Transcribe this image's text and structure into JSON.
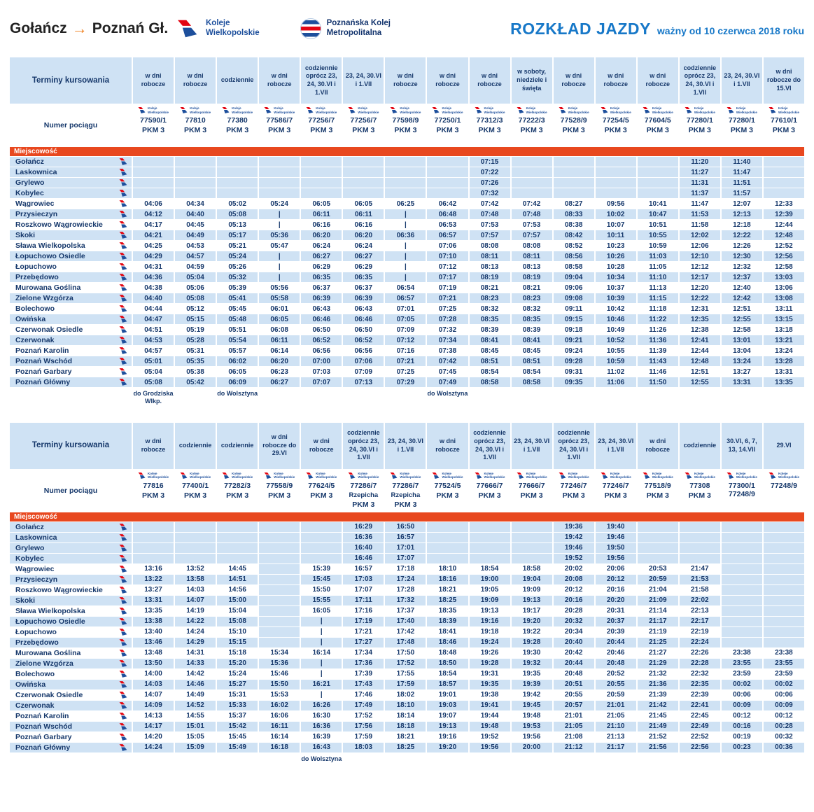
{
  "header": {
    "route_from": "Gołańcz",
    "route_to": "Poznań Gł.",
    "kw_logo_line1": "Koleje",
    "kw_logo_line2": "Wielkopolskie",
    "pkm_logo_line1": "Poznańska Kolej",
    "pkm_logo_line2": "Metropolitalna",
    "title": "ROZKŁAD JAZDY",
    "subtitle": "ważny od 10 czerwca 2018 roku"
  },
  "labels": {
    "terminy": "Terminy kursowania",
    "numer_pociagu": "Numer pociągu",
    "miejscowosc": "Miejscowość",
    "kw_small_line1": "Koleje",
    "kw_small_line2": "Wielkopolskie"
  },
  "colors": {
    "accent_blue": "#1778c8",
    "navy": "#16386b",
    "light_blue": "#cfe2f4",
    "red_bar": "#e8481f",
    "logo_red": "#e30613",
    "logo_blue": "#1d4f9c",
    "arrow_orange": "#ef7d1a"
  },
  "stations": [
    "Gołańcz",
    "Laskownica",
    "Grylewo",
    "Kobylec",
    "Wągrowiec",
    "Przysieczyn",
    "Roszkowo Wągrowieckie",
    "Skoki",
    "Sława Wielkopolska",
    "Łopuchowo Osiedle",
    "Łopuchowo",
    "Przebędowo",
    "Murowana Goślina",
    "Zielone Wzgórza",
    "Bolechowo",
    "Owińska",
    "Czerwonak Osiedle",
    "Czerwonak",
    "Poznań Karolin",
    "Poznań Wschód",
    "Poznań Garbary",
    "Poznań Główny"
  ],
  "tables": [
    {
      "columns": [
        {
          "schedule": "w dni robocze",
          "train": "77590/1",
          "brand": "PKM 3"
        },
        {
          "schedule": "w dni robocze",
          "train": "77810",
          "brand": "PKM 3"
        },
        {
          "schedule": "codziennie",
          "train": "77380",
          "brand": "PKM 3"
        },
        {
          "schedule": "w dni robocze",
          "train": "77586/7",
          "brand": "PKM 3"
        },
        {
          "schedule": "codziennie oprócz 23, 24, 30.VI i 1.VII",
          "train": "77256/7",
          "brand": "PKM 3"
        },
        {
          "schedule": "23, 24, 30.VI i 1.VII",
          "train": "77256/7",
          "brand": "PKM 3"
        },
        {
          "schedule": "w dni robocze",
          "train": "77598/9",
          "brand": "PKM 3"
        },
        {
          "schedule": "w dni robocze",
          "train": "77250/1",
          "brand": "PKM 3"
        },
        {
          "schedule": "w dni robocze",
          "train": "77312/3",
          "brand": "PKM 3"
        },
        {
          "schedule": "w soboty, niedziele i święta",
          "train": "77222/3",
          "brand": "PKM 3"
        },
        {
          "schedule": "w dni robocze",
          "train": "77528/9",
          "brand": "PKM 3"
        },
        {
          "schedule": "w dni robocze",
          "train": "77254/5",
          "brand": "PKM 3"
        },
        {
          "schedule": "w dni robocze",
          "train": "77604/5",
          "brand": "PKM 3"
        },
        {
          "schedule": "codziennie oprócz 23, 24, 30.VI i 1.VII",
          "train": "77280/1",
          "brand": "PKM 3"
        },
        {
          "schedule": "23, 24, 30.VI i 1.VII",
          "train": "77280/1",
          "brand": "PKM 3"
        },
        {
          "schedule": "w dni robocze do 15.VI",
          "train": "77610/1",
          "brand": "PKM 3"
        }
      ],
      "times": [
        [
          "",
          "",
          "",
          "",
          "",
          "",
          "",
          "",
          "07:15",
          "",
          "",
          "",
          "",
          "11:20",
          "11:40",
          ""
        ],
        [
          "",
          "",
          "",
          "",
          "",
          "",
          "",
          "",
          "07:22",
          "",
          "",
          "",
          "",
          "11:27",
          "11:47",
          ""
        ],
        [
          "",
          "",
          "",
          "",
          "",
          "",
          "",
          "",
          "07:26",
          "",
          "",
          "",
          "",
          "11:31",
          "11:51",
          ""
        ],
        [
          "",
          "",
          "",
          "",
          "",
          "",
          "",
          "",
          "07:32",
          "",
          "",
          "",
          "",
          "11:37",
          "11:57",
          ""
        ],
        [
          "04:06",
          "04:34",
          "05:02",
          "05:24",
          "06:05",
          "06:05",
          "06:25",
          "06:42",
          "07:42",
          "07:42",
          "08:27",
          "09:56",
          "10:41",
          "11:47",
          "12:07",
          "12:33"
        ],
        [
          "04:12",
          "04:40",
          "05:08",
          "|",
          "06:11",
          "06:11",
          "|",
          "06:48",
          "07:48",
          "07:48",
          "08:33",
          "10:02",
          "10:47",
          "11:53",
          "12:13",
          "12:39"
        ],
        [
          "04:17",
          "04:45",
          "05:13",
          "|",
          "06:16",
          "06:16",
          "|",
          "06:53",
          "07:53",
          "07:53",
          "08:38",
          "10:07",
          "10:51",
          "11:58",
          "12:18",
          "12:44"
        ],
        [
          "04:21",
          "04:49",
          "05:17",
          "05:36",
          "06:20",
          "06:20",
          "06:36",
          "06:57",
          "07:57",
          "07:57",
          "08:42",
          "10:11",
          "10:55",
          "12:02",
          "12:22",
          "12:48"
        ],
        [
          "04:25",
          "04:53",
          "05:21",
          "05:47",
          "06:24",
          "06:24",
          "|",
          "07:06",
          "08:08",
          "08:08",
          "08:52",
          "10:23",
          "10:59",
          "12:06",
          "12:26",
          "12:52"
        ],
        [
          "04:29",
          "04:57",
          "05:24",
          "|",
          "06:27",
          "06:27",
          "|",
          "07:10",
          "08:11",
          "08:11",
          "08:56",
          "10:26",
          "11:03",
          "12:10",
          "12:30",
          "12:56"
        ],
        [
          "04:31",
          "04:59",
          "05:26",
          "|",
          "06:29",
          "06:29",
          "|",
          "07:12",
          "08:13",
          "08:13",
          "08:58",
          "10:28",
          "11:05",
          "12:12",
          "12:32",
          "12:58"
        ],
        [
          "04:36",
          "05:04",
          "05:32",
          "|",
          "06:35",
          "06:35",
          "|",
          "07:17",
          "08:19",
          "08:19",
          "09:04",
          "10:34",
          "11:10",
          "12:17",
          "12:37",
          "13:03"
        ],
        [
          "04:38",
          "05:06",
          "05:39",
          "05:56",
          "06:37",
          "06:37",
          "06:54",
          "07:19",
          "08:21",
          "08:21",
          "09:06",
          "10:37",
          "11:13",
          "12:20",
          "12:40",
          "13:06"
        ],
        [
          "04:40",
          "05:08",
          "05:41",
          "05:58",
          "06:39",
          "06:39",
          "06:57",
          "07:21",
          "08:23",
          "08:23",
          "09:08",
          "10:39",
          "11:15",
          "12:22",
          "12:42",
          "13:08"
        ],
        [
          "04:44",
          "05:12",
          "05:45",
          "06:01",
          "06:43",
          "06:43",
          "07:01",
          "07:25",
          "08:32",
          "08:32",
          "09:11",
          "10:42",
          "11:18",
          "12:31",
          "12:51",
          "13:11"
        ],
        [
          "04:47",
          "05:15",
          "05:48",
          "06:05",
          "06:46",
          "06:46",
          "07:05",
          "07:28",
          "08:35",
          "08:35",
          "09:15",
          "10:46",
          "11:22",
          "12:35",
          "12:55",
          "13:15"
        ],
        [
          "04:51",
          "05:19",
          "05:51",
          "06:08",
          "06:50",
          "06:50",
          "07:09",
          "07:32",
          "08:39",
          "08:39",
          "09:18",
          "10:49",
          "11:26",
          "12:38",
          "12:58",
          "13:18"
        ],
        [
          "04:53",
          "05:28",
          "05:54",
          "06:11",
          "06:52",
          "06:52",
          "07:12",
          "07:34",
          "08:41",
          "08:41",
          "09:21",
          "10:52",
          "11:36",
          "12:41",
          "13:01",
          "13:21"
        ],
        [
          "04:57",
          "05:31",
          "05:57",
          "06:14",
          "06:56",
          "06:56",
          "07:16",
          "07:38",
          "08:45",
          "08:45",
          "09:24",
          "10:55",
          "11:39",
          "12:44",
          "13:04",
          "13:24"
        ],
        [
          "05:01",
          "05:35",
          "06:02",
          "06:20",
          "07:00",
          "07:06",
          "07:21",
          "07:42",
          "08:51",
          "08:51",
          "09:28",
          "10:59",
          "11:43",
          "12:48",
          "13:24",
          "13:28"
        ],
        [
          "05:04",
          "05:38",
          "06:05",
          "06:23",
          "07:03",
          "07:09",
          "07:25",
          "07:45",
          "08:54",
          "08:54",
          "09:31",
          "11:02",
          "11:46",
          "12:51",
          "13:27",
          "13:31"
        ],
        [
          "05:08",
          "05:42",
          "06:09",
          "06:27",
          "07:07",
          "07:13",
          "07:29",
          "07:49",
          "08:58",
          "08:58",
          "09:35",
          "11:06",
          "11:50",
          "12:55",
          "13:31",
          "13:35"
        ]
      ],
      "footnotes": [
        {
          "col": 0,
          "text": "do Grodziska Wlkp."
        },
        {
          "col": 2,
          "text": "do Wolsztyna"
        },
        {
          "col": 7,
          "text": "do Wolsztyna"
        }
      ]
    },
    {
      "columns": [
        {
          "schedule": "w dni robocze",
          "train": "77816",
          "brand": "PKM 3"
        },
        {
          "schedule": "codziennie",
          "train": "77400/1",
          "brand": "PKM 3"
        },
        {
          "schedule": "codziennie",
          "train": "77282/3",
          "brand": "PKM 3"
        },
        {
          "schedule": "w dni robocze do 29.VI",
          "train": "77558/9",
          "brand": "PKM 3"
        },
        {
          "schedule": "w dni robocze",
          "train": "77624/5",
          "brand": "PKM 3"
        },
        {
          "schedule": "codziennie oprócz 23, 24, 30.VI i 1.VII",
          "train": "77286/7",
          "name": "Rzepicha",
          "brand": "PKM 3"
        },
        {
          "schedule": "23, 24, 30.VI i 1.VII",
          "train": "77286/7",
          "name": "Rzepicha",
          "brand": "PKM 3"
        },
        {
          "schedule": "w dni robocze",
          "train": "77524/5",
          "brand": "PKM 3"
        },
        {
          "schedule": "codziennie oprócz 23, 24, 30.VI i 1.VII",
          "train": "77666/7",
          "brand": "PKM 3"
        },
        {
          "schedule": "23, 24, 30.VI i 1.VII",
          "train": "77666/7",
          "brand": "PKM 3"
        },
        {
          "schedule": "codziennie oprócz 23, 24, 30.VI i 1.VII",
          "train": "77246/7",
          "brand": "PKM 3"
        },
        {
          "schedule": "23, 24, 30.VI i 1.VII",
          "train": "77246/7",
          "brand": "PKM 3"
        },
        {
          "schedule": "w dni robocze",
          "train": "77518/9",
          "brand": "PKM 3"
        },
        {
          "schedule": "codziennie",
          "train": "77308",
          "brand": "PKM 3"
        },
        {
          "schedule": "30.VI, 6, 7, 13, 14.VII",
          "train": "77300/1\n77248/9",
          "brand": ""
        },
        {
          "schedule": "29.VI",
          "train": "77248/9",
          "brand": ""
        }
      ],
      "times": [
        [
          "",
          "",
          "",
          "",
          "",
          "16:29",
          "16:50",
          "",
          "",
          "",
          "19:36",
          "19:40",
          "",
          "",
          "",
          ""
        ],
        [
          "",
          "",
          "",
          "",
          "",
          "16:36",
          "16:57",
          "",
          "",
          "",
          "19:42",
          "19:46",
          "",
          "",
          "",
          ""
        ],
        [
          "",
          "",
          "",
          "",
          "",
          "16:40",
          "17:01",
          "",
          "",
          "",
          "19:46",
          "19:50",
          "",
          "",
          "",
          ""
        ],
        [
          "",
          "",
          "",
          "",
          "",
          "16:46",
          "17:07",
          "",
          "",
          "",
          "19:52",
          "19:56",
          "",
          "",
          "",
          ""
        ],
        [
          "13:16",
          "13:52",
          "14:45",
          "",
          "15:39",
          "16:57",
          "17:18",
          "18:10",
          "18:54",
          "18:58",
          "20:02",
          "20:06",
          "20:53",
          "21:47",
          "",
          ""
        ],
        [
          "13:22",
          "13:58",
          "14:51",
          "",
          "15:45",
          "17:03",
          "17:24",
          "18:16",
          "19:00",
          "19:04",
          "20:08",
          "20:12",
          "20:59",
          "21:53",
          "",
          ""
        ],
        [
          "13:27",
          "14:03",
          "14:56",
          "",
          "15:50",
          "17:07",
          "17:28",
          "18:21",
          "19:05",
          "19:09",
          "20:12",
          "20:16",
          "21:04",
          "21:58",
          "",
          ""
        ],
        [
          "13:31",
          "14:07",
          "15:00",
          "",
          "15:55",
          "17:11",
          "17:32",
          "18:25",
          "19:09",
          "19:13",
          "20:16",
          "20:20",
          "21:09",
          "22:02",
          "",
          ""
        ],
        [
          "13:35",
          "14:19",
          "15:04",
          "",
          "16:05",
          "17:16",
          "17:37",
          "18:35",
          "19:13",
          "19:17",
          "20:28",
          "20:31",
          "21:14",
          "22:13",
          "",
          ""
        ],
        [
          "13:38",
          "14:22",
          "15:08",
          "",
          "|",
          "17:19",
          "17:40",
          "18:39",
          "19:16",
          "19:20",
          "20:32",
          "20:37",
          "21:17",
          "22:17",
          "",
          ""
        ],
        [
          "13:40",
          "14:24",
          "15:10",
          "",
          "|",
          "17:21",
          "17:42",
          "18:41",
          "19:18",
          "19:22",
          "20:34",
          "20:39",
          "21:19",
          "22:19",
          "",
          ""
        ],
        [
          "13:46",
          "14:29",
          "15:15",
          "",
          "|",
          "17:27",
          "17:48",
          "18:46",
          "19:24",
          "19:28",
          "20:40",
          "20:44",
          "21:25",
          "22:24",
          "",
          ""
        ],
        [
          "13:48",
          "14:31",
          "15:18",
          "15:34",
          "16:14",
          "17:34",
          "17:50",
          "18:48",
          "19:26",
          "19:30",
          "20:42",
          "20:46",
          "21:27",
          "22:26",
          "23:38",
          "23:38"
        ],
        [
          "13:50",
          "14:33",
          "15:20",
          "15:36",
          "|",
          "17:36",
          "17:52",
          "18:50",
          "19:28",
          "19:32",
          "20:44",
          "20:48",
          "21:29",
          "22:28",
          "23:55",
          "23:55"
        ],
        [
          "14:00",
          "14:42",
          "15:24",
          "15:46",
          "|",
          "17:39",
          "17:55",
          "18:54",
          "19:31",
          "19:35",
          "20:48",
          "20:52",
          "21:32",
          "22:32",
          "23:59",
          "23:59"
        ],
        [
          "14:03",
          "14:46",
          "15:27",
          "15:50",
          "16:21",
          "17:43",
          "17:59",
          "18:57",
          "19:35",
          "19:39",
          "20:51",
          "20:55",
          "21:36",
          "22:35",
          "00:02",
          "00:02"
        ],
        [
          "14:07",
          "14:49",
          "15:31",
          "15:53",
          "|",
          "17:46",
          "18:02",
          "19:01",
          "19:38",
          "19:42",
          "20:55",
          "20:59",
          "21:39",
          "22:39",
          "00:06",
          "00:06"
        ],
        [
          "14:09",
          "14:52",
          "15:33",
          "16:02",
          "16:26",
          "17:49",
          "18:10",
          "19:03",
          "19:41",
          "19:45",
          "20:57",
          "21:01",
          "21:42",
          "22:41",
          "00:09",
          "00:09"
        ],
        [
          "14:13",
          "14:55",
          "15:37",
          "16:06",
          "16:30",
          "17:52",
          "18:14",
          "19:07",
          "19:44",
          "19:48",
          "21:01",
          "21:05",
          "21:45",
          "22:45",
          "00:12",
          "00:12"
        ],
        [
          "14:17",
          "15:01",
          "15:42",
          "16:11",
          "16:36",
          "17:56",
          "18:18",
          "19:13",
          "19:48",
          "19:53",
          "21:05",
          "21:10",
          "21:49",
          "22:49",
          "00:16",
          "00:28"
        ],
        [
          "14:20",
          "15:05",
          "15:45",
          "16:14",
          "16:39",
          "17:59",
          "18:21",
          "19:16",
          "19:52",
          "19:56",
          "21:08",
          "21:13",
          "21:52",
          "22:52",
          "00:19",
          "00:32"
        ],
        [
          "14:24",
          "15:09",
          "15:49",
          "16:18",
          "16:43",
          "18:03",
          "18:25",
          "19:20",
          "19:56",
          "20:00",
          "21:12",
          "21:17",
          "21:56",
          "22:56",
          "00:23",
          "00:36"
        ]
      ],
      "footnotes": [
        {
          "col": 4,
          "text": "do Wolsztyna"
        }
      ]
    }
  ]
}
